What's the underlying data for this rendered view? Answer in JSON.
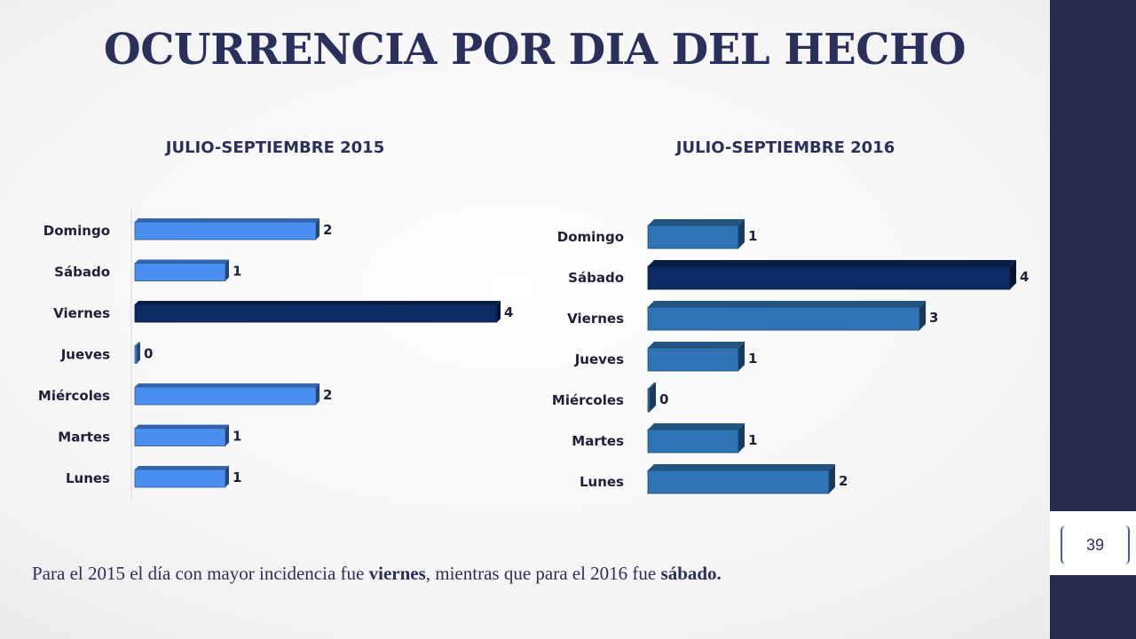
{
  "slide": {
    "title": "OCURRENCIA POR DIA DEL HECHO",
    "page_number": "39",
    "caption": {
      "part1": "Para el 2015 el día con mayor incidencia fue ",
      "bold1": "viernes",
      "part2": ", mientras que para el 2016 fue ",
      "bold2": "sábado."
    }
  },
  "colors": {
    "sidebar": "#28294f",
    "title": "#2b2f5c",
    "bar_2015": "#4a8ef0",
    "bar_2015_highlight": "#0c2a63",
    "bar_2016": "#2f75b5",
    "bar_2016_highlight": "#0c2a63"
  },
  "chart_data": [
    {
      "type": "bar",
      "orientation": "horizontal",
      "style": "3d",
      "title": "JULIO-SEPTIEMBRE 2015",
      "categories": [
        "Domingo",
        "Sábado",
        "Viernes",
        "Jueves",
        "Miércoles",
        "Martes",
        "Lunes"
      ],
      "values": [
        2,
        1,
        4,
        0,
        2,
        1,
        1
      ],
      "highlight": "Viernes",
      "xlim": [
        0,
        4
      ],
      "grid": false,
      "data_labels": true
    },
    {
      "type": "bar",
      "orientation": "horizontal",
      "style": "3d",
      "title": "JULIO-SEPTIEMBRE 2016",
      "categories": [
        "Domingo",
        "Sábado",
        "Viernes",
        "Jueves",
        "Miércoles",
        "Martes",
        "Lunes"
      ],
      "values": [
        1,
        4,
        3,
        1,
        0,
        1,
        2
      ],
      "highlight": "Sábado",
      "xlim": [
        0,
        4
      ],
      "grid": false,
      "data_labels": true
    }
  ]
}
